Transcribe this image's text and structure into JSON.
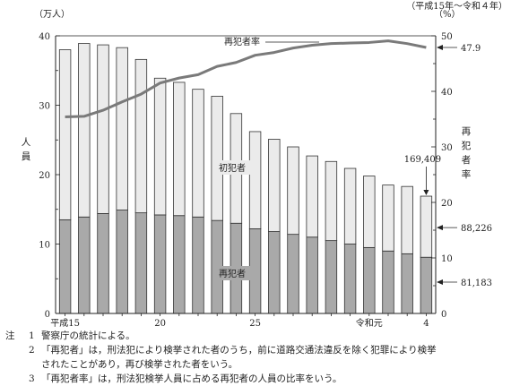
{
  "chart_data": {
    "type": "bar",
    "period_label": "（平成15年～令和４年）",
    "y_left_unit": "（万人）",
    "y_left_label": "人員",
    "y_right_unit": "（%）",
    "y_right_label": "再犯者率",
    "ylim_left": [
      0,
      40
    ],
    "ylim_right": [
      0,
      50
    ],
    "y_left_ticks": [
      "0",
      "10",
      "20",
      "30",
      "40"
    ],
    "y_right_ticks": [
      "0",
      "10",
      "20",
      "30",
      "40",
      "50"
    ],
    "x_tick_labels": [
      "平成15",
      "20",
      "25",
      "令和元",
      "4"
    ],
    "categories": [
      "平成15",
      "16",
      "17",
      "18",
      "19",
      "20",
      "21",
      "22",
      "23",
      "24",
      "25",
      "26",
      "27",
      "28",
      "29",
      "30",
      "令和元",
      "2",
      "3",
      "4"
    ],
    "series": [
      {
        "name": "再犯者",
        "color": "#a9a9a9",
        "values": [
          13.5,
          13.9,
          14.4,
          14.9,
          14.5,
          14.2,
          14.1,
          13.9,
          13.4,
          13.0,
          12.2,
          11.8,
          11.4,
          11.0,
          10.5,
          10.0,
          9.5,
          9.0,
          8.6,
          8.1
        ]
      },
      {
        "name": "初犯者",
        "color": "#ebebeb",
        "values": [
          24.5,
          25.0,
          24.3,
          23.4,
          22.1,
          19.7,
          19.2,
          18.4,
          17.9,
          15.8,
          14.0,
          13.3,
          12.6,
          11.7,
          11.4,
          10.9,
          10.3,
          9.5,
          9.7,
          8.8
        ]
      }
    ],
    "rate": {
      "name": "再犯者率",
      "values": [
        35.4,
        35.5,
        36.6,
        38.1,
        39.5,
        41.5,
        42.4,
        43.0,
        44.5,
        45.2,
        46.5,
        47.0,
        47.8,
        48.3,
        48.6,
        48.7,
        48.8,
        49.1,
        48.6,
        47.9
      ]
    },
    "annotations": {
      "rate_label": "再犯者率",
      "rate_end_value": "47.9",
      "total_value": "169,409",
      "first_value": "88,226",
      "repeat_value": "81,183",
      "first_label": "初犯者",
      "repeat_label": "再犯者"
    }
  },
  "notes": {
    "label": "注",
    "items": [
      {
        "num": "1",
        "lines": [
          "警察庁の統計による。"
        ]
      },
      {
        "num": "2",
        "lines": [
          "「再犯者」は，刑法犯により検挙された者のうち，前に道路交通法違反を除く犯罪により検挙",
          "されたことがあり，再び検挙された者をいう。"
        ]
      },
      {
        "num": "3",
        "lines": [
          "「再犯者率」は，刑法犯検挙人員に占める再犯者の人員の比率をいう。"
        ]
      }
    ]
  }
}
